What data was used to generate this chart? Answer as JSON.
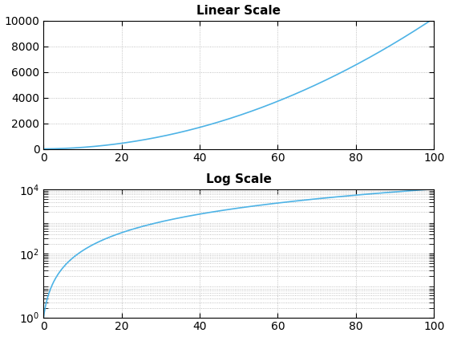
{
  "title1": "Linear Scale",
  "title2": "Log Scale",
  "x_start": 0,
  "x_end": 100,
  "n_points": 1000,
  "line_color": "#4db3e6",
  "line_width": 1.2,
  "bg_color": "#ffffff",
  "grid_color": "#b0b0b0",
  "xlim": [
    0,
    100
  ],
  "ylim_linear": [
    0,
    10000
  ],
  "ylim_log": [
    1,
    10000
  ],
  "yticks_linear": [
    0,
    2000,
    4000,
    6000,
    8000,
    10000
  ],
  "yticks_log": [
    1,
    100,
    10000
  ],
  "xticks": [
    0,
    20,
    40,
    60,
    80,
    100
  ],
  "title_fontsize": 11
}
